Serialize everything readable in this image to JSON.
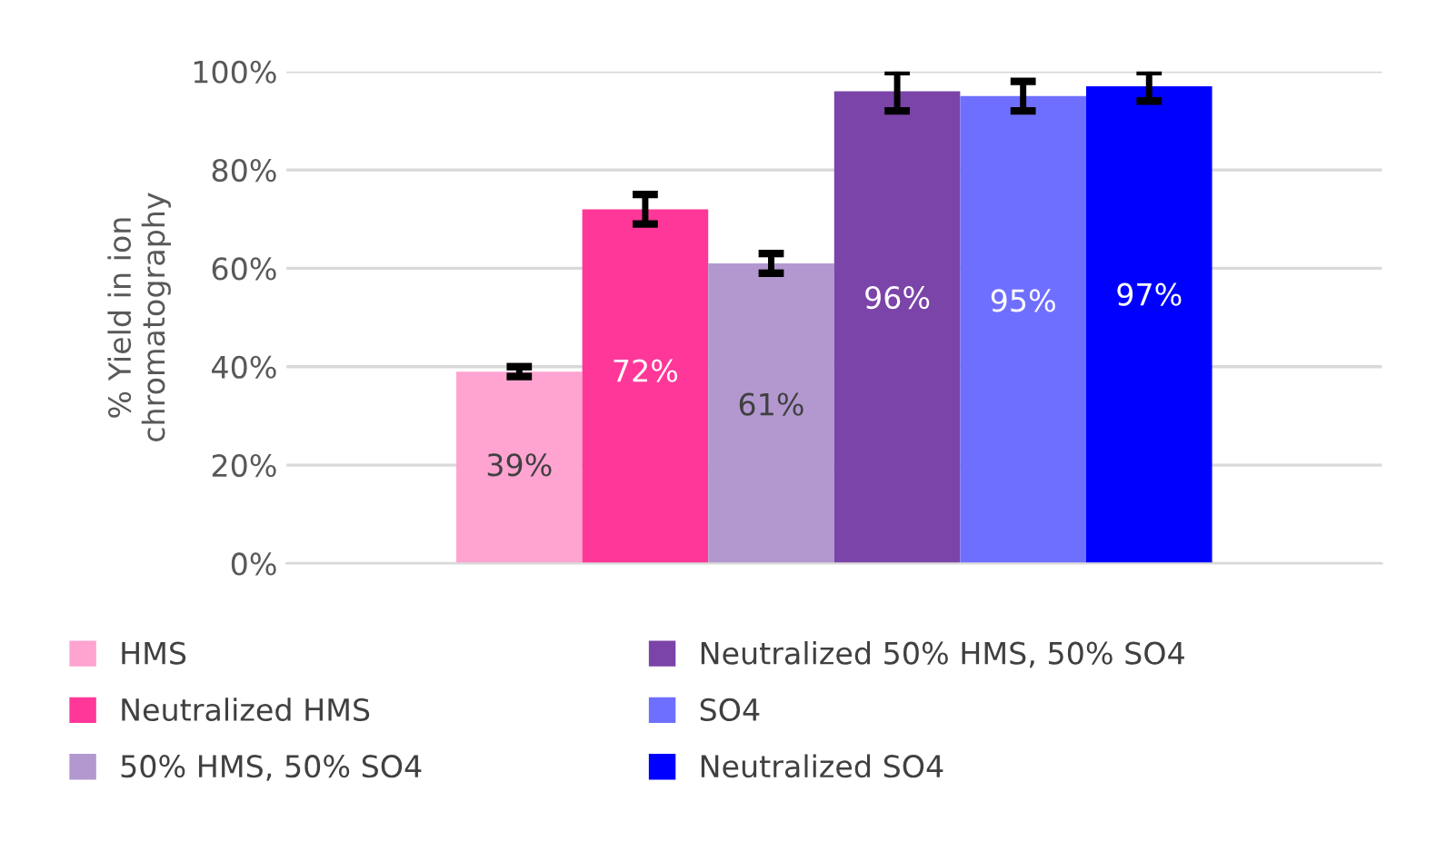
{
  "chart_data": {
    "type": "bar",
    "ylabel": "% Yield in ion\nchromatography",
    "categories": [
      null
    ],
    "series": [
      {
        "name": "HMS",
        "color": "#ffa3d1",
        "values": [
          39
        ],
        "errors": [
          1
        ],
        "value_labels": [
          "39%"
        ]
      },
      {
        "name": "Neutralized HMS",
        "color": "#ff3799",
        "values": [
          72
        ],
        "errors": [
          3
        ],
        "value_labels": [
          "72%"
        ]
      },
      {
        "name": "50% HMS, 50% SO4",
        "color": "#b398d0",
        "values": [
          61
        ],
        "errors": [
          2
        ],
        "value_labels": [
          "61%"
        ]
      },
      {
        "name": "Neutralized 50% HMS, 50% SO4",
        "color": "#7b44a8",
        "values": [
          96
        ],
        "errors": [
          4
        ],
        "value_labels": [
          "96%"
        ]
      },
      {
        "name": "SO4",
        "color": "#6f6fff",
        "values": [
          95
        ],
        "errors": [
          3
        ],
        "value_labels": [
          "95%"
        ]
      },
      {
        "name": "Neutralized SO4",
        "color": "#0000ff",
        "values": [
          97
        ],
        "errors": [
          3
        ],
        "value_labels": [
          "97%"
        ]
      }
    ],
    "ylim": [
      0,
      100
    ],
    "yticks": [
      {
        "value": 0,
        "label": "0%"
      },
      {
        "value": 20,
        "label": "20%"
      },
      {
        "value": 40,
        "label": "40%"
      },
      {
        "value": 60,
        "label": "60%"
      },
      {
        "value": 80,
        "label": "80%"
      },
      {
        "value": 100,
        "label": "100%"
      }
    ],
    "grid": "y",
    "legend": "bottom"
  }
}
